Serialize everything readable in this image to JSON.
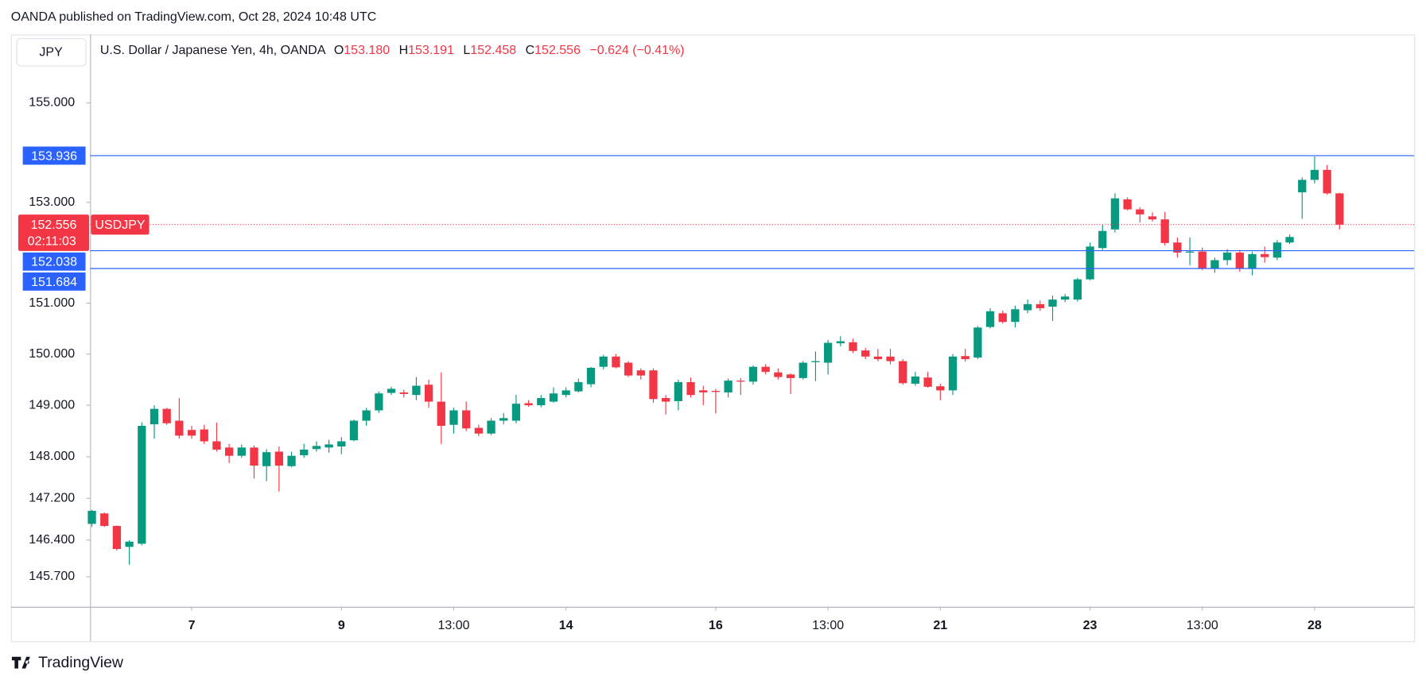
{
  "header": {
    "published": "OANDA published on TradingView.com, Oct 28, 2024 10:48 UTC"
  },
  "footer": {
    "brand": "TradingView"
  },
  "chart_data": {
    "type": "candlestick",
    "currency": "JPY",
    "legend": {
      "title": "U.S. Dollar / Japanese Yen, 4h, OANDA",
      "ohlc": [
        {
          "key": "O",
          "value": "153.180"
        },
        {
          "key": "H",
          "value": "153.191"
        },
        {
          "key": "L",
          "value": "152.458"
        },
        {
          "key": "C",
          "value": "152.556"
        }
      ],
      "change": "−0.624 (−0.41%)"
    },
    "categories": [
      null,
      null,
      null,
      null,
      null,
      null,
      null,
      null,
      "7",
      null,
      null,
      null,
      null,
      null,
      null,
      null,
      null,
      null,
      null,
      null,
      "9",
      null,
      null,
      null,
      null,
      null,
      null,
      null,
      null,
      "13:00",
      null,
      null,
      null,
      null,
      null,
      null,
      null,
      null,
      "14",
      null,
      null,
      null,
      null,
      null,
      null,
      null,
      null,
      null,
      null,
      null,
      "16",
      null,
      null,
      null,
      null,
      null,
      null,
      null,
      null,
      "13:00",
      null,
      null,
      null,
      null,
      null,
      null,
      null,
      null,
      "21",
      null,
      null,
      null,
      null,
      null,
      null,
      null,
      null,
      null,
      null,
      null,
      "23",
      null,
      null,
      null,
      null,
      null,
      null,
      null,
      null,
      "13:00",
      null,
      null,
      null,
      null,
      null,
      null,
      null,
      null,
      "28",
      null,
      null
    ],
    "open": [
      146.71,
      146.91,
      146.67,
      146.27,
      146.33,
      148.63,
      148.93,
      148.7,
      148.52,
      148.53,
      148.3,
      148.18,
      148.02,
      148.18,
      147.82,
      148.1,
      147.82,
      148.03,
      148.15,
      148.18,
      148.2,
      148.32,
      148.7,
      148.9,
      149.24,
      149.25,
      149.2,
      149.4,
      149.07,
      148.62,
      148.9,
      148.56,
      148.45,
      148.7,
      148.7,
      149.04,
      149.0,
      149.07,
      149.2,
      149.27,
      149.41,
      149.75,
      149.95,
      149.83,
      149.68,
      149.68,
      149.14,
      149.08,
      149.45,
      149.29,
      149.28,
      149.25,
      149.48,
      149.46,
      149.75,
      149.64,
      149.6,
      149.53,
      149.84,
      149.83,
      150.21,
      150.23,
      150.07,
      149.95,
      149.95,
      149.86,
      149.42,
      149.54,
      149.37,
      149.29,
      149.96,
      149.93,
      150.53,
      150.8,
      150.63,
      150.86,
      150.98,
      150.93,
      151.07,
      151.07,
      151.47,
      152.09,
      152.46,
      153.06,
      152.86,
      152.72,
      152.66,
      152.2,
      152.0,
      152.02,
      151.68,
      151.85,
      152.0,
      151.68,
      151.97,
      151.9,
      152.2,
      153.2,
      153.45,
      153.65,
      153.18
    ],
    "high": [
      146.98,
      146.93,
      146.68,
      146.4,
      148.67,
      149.0,
      148.95,
      149.14,
      148.6,
      148.62,
      148.66,
      148.25,
      148.24,
      148.22,
      148.15,
      148.2,
      148.1,
      148.25,
      148.3,
      148.33,
      148.38,
      148.72,
      148.95,
      149.27,
      149.36,
      149.3,
      149.55,
      149.5,
      149.64,
      148.95,
      149.07,
      148.62,
      148.75,
      148.85,
      149.2,
      149.1,
      149.2,
      149.35,
      149.35,
      149.52,
      149.75,
      149.98,
      150.0,
      149.86,
      149.72,
      149.72,
      149.2,
      149.5,
      149.54,
      149.38,
      149.32,
      149.52,
      149.53,
      149.78,
      149.8,
      149.72,
      149.62,
      149.86,
      150.05,
      150.28,
      150.35,
      150.3,
      150.12,
      150.1,
      150.1,
      149.9,
      149.65,
      149.65,
      149.42,
      150.0,
      150.1,
      150.55,
      150.9,
      150.85,
      150.95,
      151.07,
      151.05,
      151.15,
      151.18,
      151.5,
      152.2,
      152.55,
      153.18,
      153.1,
      152.9,
      152.8,
      152.81,
      152.3,
      152.3,
      152.1,
      151.9,
      152.07,
      152.05,
      152.02,
      152.12,
      152.25,
      152.36,
      153.5,
      153.92,
      153.75,
      153.191
    ],
    "low": [
      146.65,
      146.65,
      146.2,
      145.93,
      146.3,
      148.35,
      148.62,
      148.35,
      148.35,
      148.25,
      148.1,
      147.88,
      147.98,
      147.58,
      147.53,
      147.33,
      147.8,
      147.98,
      148.1,
      148.08,
      148.05,
      148.3,
      148.6,
      148.85,
      149.2,
      149.15,
      149.1,
      148.95,
      148.25,
      148.45,
      148.5,
      148.4,
      148.42,
      148.63,
      148.65,
      148.97,
      148.96,
      149.05,
      149.15,
      149.25,
      149.35,
      149.7,
      149.72,
      149.55,
      149.5,
      149.05,
      148.82,
      148.9,
      149.15,
      149.0,
      148.84,
      149.15,
      149.2,
      149.4,
      149.6,
      149.5,
      149.22,
      149.5,
      149.47,
      149.6,
      150.15,
      150.02,
      149.9,
      149.86,
      149.8,
      149.4,
      149.38,
      149.34,
      149.1,
      149.2,
      149.85,
      149.9,
      150.5,
      150.6,
      150.52,
      150.8,
      150.85,
      150.65,
      151.02,
      151.03,
      151.45,
      152.05,
      152.4,
      152.84,
      152.6,
      152.62,
      152.14,
      151.9,
      151.75,
      151.65,
      151.6,
      151.75,
      151.62,
      151.55,
      151.8,
      151.85,
      152.17,
      152.67,
      153.38,
      153.15,
      152.458
    ],
    "close": [
      146.96,
      146.67,
      146.23,
      146.37,
      148.6,
      148.93,
      148.65,
      148.41,
      148.41,
      148.3,
      148.14,
      148.02,
      148.18,
      147.83,
      148.09,
      147.83,
      148.02,
      148.14,
      148.21,
      148.24,
      148.3,
      148.7,
      148.9,
      149.23,
      149.32,
      149.22,
      149.38,
      149.07,
      148.6,
      148.9,
      148.55,
      148.45,
      148.7,
      148.75,
      149.03,
      149.0,
      149.14,
      149.23,
      149.29,
      149.45,
      149.73,
      149.95,
      149.74,
      149.58,
      149.58,
      149.12,
      149.07,
      149.45,
      149.2,
      149.25,
      149.26,
      149.48,
      149.46,
      149.75,
      149.65,
      149.55,
      149.53,
      149.83,
      149.86,
      150.22,
      150.25,
      150.06,
      149.95,
      149.9,
      149.86,
      149.43,
      149.56,
      149.36,
      149.29,
      149.95,
      149.9,
      150.52,
      150.84,
      150.63,
      150.88,
      150.98,
      150.9,
      151.07,
      151.13,
      151.47,
      152.12,
      152.43,
      153.08,
      152.86,
      152.76,
      152.66,
      152.19,
      152.0,
      152.02,
      151.68,
      151.85,
      152.0,
      151.68,
      151.97,
      151.91,
      152.2,
      152.31,
      153.45,
      153.65,
      153.18,
      152.556
    ],
    "up_color": "#089981",
    "down_color": "#f23645",
    "log_scale": true,
    "ylim": [
      145.13,
      156.39
    ],
    "yticks": [
      {
        "value": 155,
        "label": "155.000"
      },
      {
        "value": 153,
        "label": "153.000"
      },
      {
        "value": 151,
        "label": "151.000"
      },
      {
        "value": 150,
        "label": "150.000"
      },
      {
        "value": 149,
        "label": "149.000"
      },
      {
        "value": 148,
        "label": "148.000"
      },
      {
        "value": 147.2,
        "label": "147.200"
      },
      {
        "value": 146.4,
        "label": "146.400"
      },
      {
        "value": 145.7,
        "label": "145.700"
      }
    ],
    "hlines": [
      153.936,
      152.038,
      151.684
    ],
    "hline_color": "#2962ff",
    "last_price": {
      "value": 152.556,
      "symbol": "USDJPY",
      "countdown": "02:11:03"
    }
  }
}
